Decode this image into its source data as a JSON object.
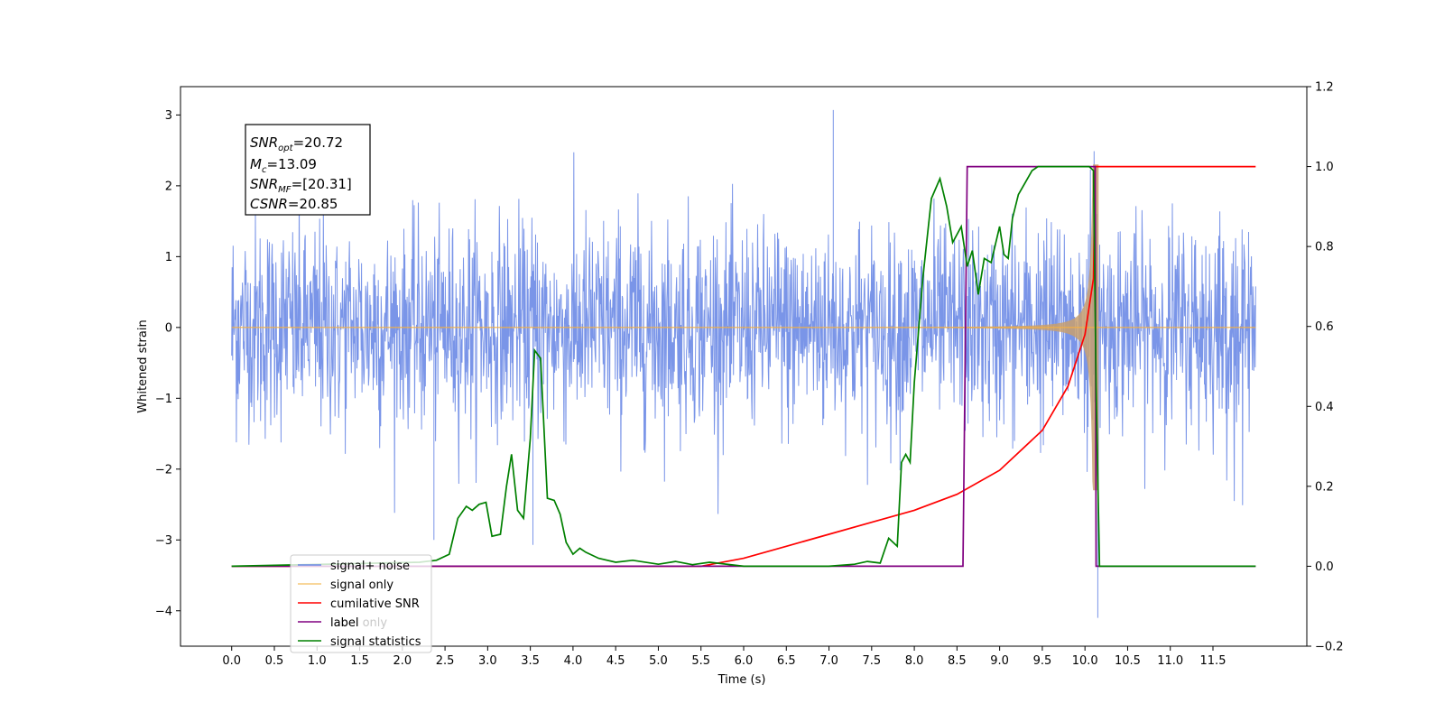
{
  "chart_data": {
    "type": "line",
    "xlabel": "Time (s)",
    "ylabel": "Whitened strain",
    "xlim": [
      -0.6,
      12.6
    ],
    "ylim": [
      -4.5,
      3.4
    ],
    "y2lim": [
      -0.2,
      1.2
    ],
    "x_ticks": [
      "0.0",
      "0.5",
      "1.0",
      "1.5",
      "2.0",
      "2.5",
      "3.0",
      "3.5",
      "4.0",
      "4.5",
      "5.0",
      "5.5",
      "6.0",
      "6.5",
      "7.0",
      "7.5",
      "8.0",
      "8.5",
      "9.0",
      "9.5",
      "10.0",
      "10.5",
      "11.0",
      "11.5"
    ],
    "y_ticks": [
      "3",
      "2",
      "1",
      "0",
      "−1",
      "−2",
      "−3",
      "−4"
    ],
    "y2_ticks": [
      "1.2",
      "1.0",
      "0.8",
      "0.6",
      "0.4",
      "0.2",
      "0.0",
      "−0.2"
    ],
    "annotation": {
      "snr_opt": "=20.72",
      "mc": "=13.09",
      "snr_mf": "=[20.31]",
      "csnr": "=20.85"
    },
    "legend_placement": "lower-left",
    "series": [
      {
        "name": "signal+ noise",
        "axis": "left",
        "color": "#6b8ae5",
        "description_range": [
          0.0,
          12.0
        ],
        "approx_envelope": [
          -1.0,
          1.0
        ],
        "peaks_notable": [
          [
            7.05,
            3.07
          ],
          [
            10.15,
            -4.1
          ],
          [
            2.37,
            -3.0
          ],
          [
            3.53,
            -3.07
          ]
        ]
      },
      {
        "name": "signal only",
        "axis": "left",
        "color": "#f5b041",
        "chirp": {
          "start": 0.0,
          "merger": 10.1,
          "end": 12.0,
          "max_amplitude": 2.3
        }
      },
      {
        "name": "cumilative SNR",
        "axis": "right",
        "color": "#ff0000",
        "x": [
          0.0,
          5.5,
          6.0,
          6.5,
          7.0,
          7.5,
          8.0,
          8.5,
          9.0,
          9.5,
          9.8,
          10.0,
          10.1,
          10.12,
          11.0,
          12.0
        ],
        "values": [
          0.0,
          0.0,
          0.02,
          0.05,
          0.08,
          0.11,
          0.14,
          0.18,
          0.24,
          0.34,
          0.45,
          0.58,
          0.72,
          1.0,
          1.0,
          1.0
        ]
      },
      {
        "name": "label",
        "axis": "right",
        "color": "#800080",
        "x": [
          0.0,
          8.57,
          8.62,
          10.12,
          10.13,
          12.0
        ],
        "values": [
          0.0,
          0.0,
          1.0,
          1.0,
          0.0,
          0.0
        ]
      },
      {
        "name": "label only",
        "axis": "right",
        "color": "#c0c0c0",
        "x": [],
        "values": []
      },
      {
        "name": "signal statistics",
        "axis": "right",
        "color": "#008000",
        "x": [
          0.0,
          2.2,
          2.4,
          2.55,
          2.65,
          2.75,
          2.82,
          2.9,
          2.98,
          3.05,
          3.15,
          3.22,
          3.28,
          3.35,
          3.42,
          3.5,
          3.55,
          3.62,
          3.7,
          3.78,
          3.85,
          3.92,
          4.0,
          4.08,
          4.15,
          4.3,
          4.5,
          4.7,
          5.0,
          5.2,
          5.4,
          5.6,
          6.0,
          6.5,
          7.0,
          7.3,
          7.45,
          7.6,
          7.7,
          7.8,
          7.85,
          7.9,
          7.95,
          8.0,
          8.1,
          8.2,
          8.3,
          8.38,
          8.45,
          8.55,
          8.62,
          8.68,
          8.75,
          8.82,
          8.9,
          9.0,
          9.05,
          9.1,
          9.15,
          9.22,
          9.3,
          9.38,
          9.45,
          9.55,
          9.7,
          9.9,
          10.05,
          10.1,
          10.13,
          10.17,
          10.2,
          12.0
        ],
        "values": [
          0.0,
          0.01,
          0.015,
          0.03,
          0.12,
          0.15,
          0.14,
          0.155,
          0.16,
          0.075,
          0.08,
          0.2,
          0.28,
          0.14,
          0.12,
          0.32,
          0.54,
          0.52,
          0.17,
          0.165,
          0.13,
          0.06,
          0.03,
          0.045,
          0.035,
          0.02,
          0.01,
          0.015,
          0.005,
          0.012,
          0.004,
          0.01,
          0.0,
          0.0,
          0.0,
          0.005,
          0.012,
          0.008,
          0.07,
          0.05,
          0.26,
          0.28,
          0.26,
          0.46,
          0.72,
          0.92,
          0.97,
          0.9,
          0.81,
          0.85,
          0.75,
          0.79,
          0.68,
          0.77,
          0.76,
          0.85,
          0.78,
          0.77,
          0.87,
          0.93,
          0.96,
          0.99,
          1.0,
          1.0,
          1.0,
          1.0,
          1.0,
          0.99,
          0.45,
          0.0,
          0.0,
          0.0
        ]
      }
    ]
  }
}
